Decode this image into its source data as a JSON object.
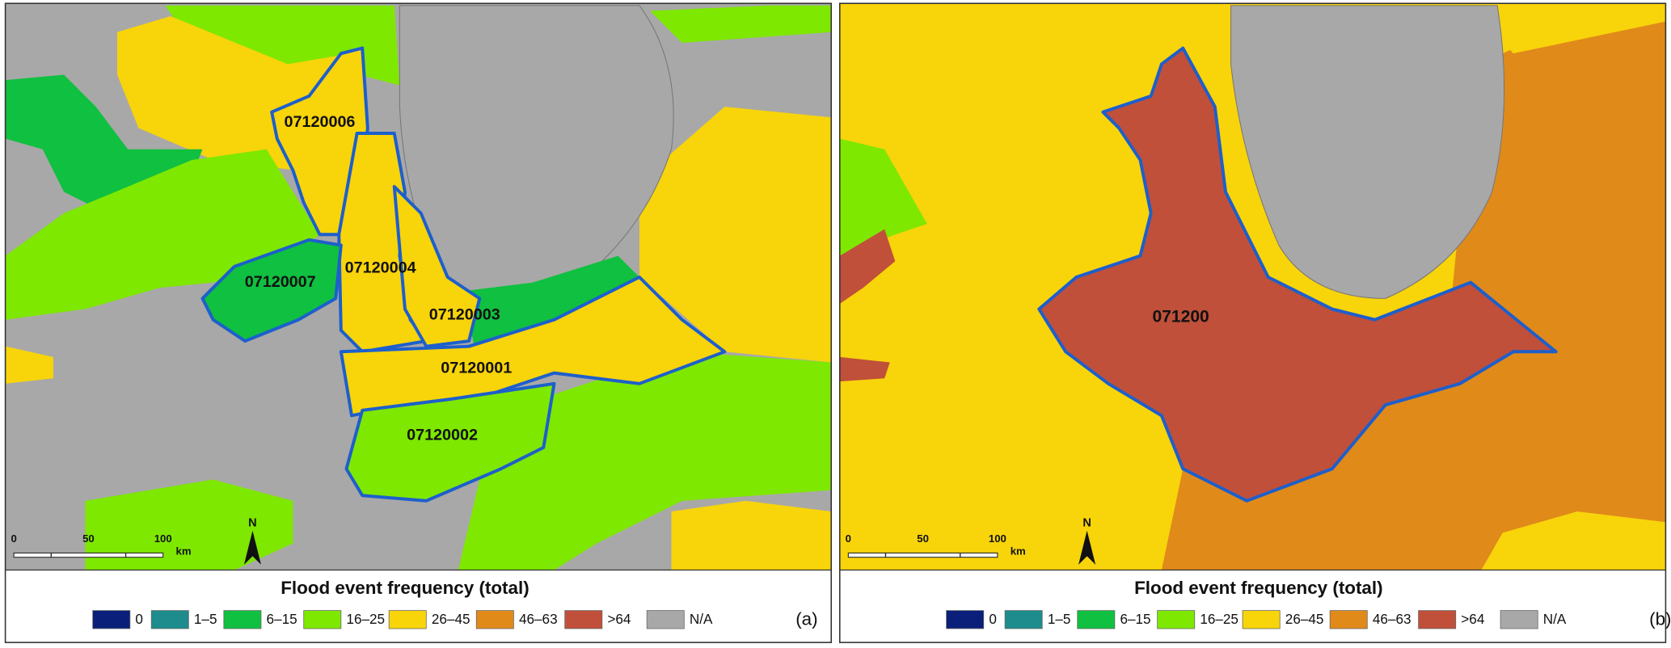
{
  "panels": [
    {
      "tag": "(a)",
      "map_labels": [
        "07120006",
        "07120004",
        "07120007",
        "07120003",
        "07120001",
        "07120002"
      ],
      "scale_bar": {
        "labels": [
          "0",
          "50",
          "100"
        ],
        "unit": "km"
      },
      "north": "N",
      "legend": {
        "title": "Flood event frequency (total)",
        "items": [
          {
            "label": "0",
            "color": "#0a1f7a"
          },
          {
            "label": "1–5",
            "color": "#1e8c8c"
          },
          {
            "label": "6–15",
            "color": "#10c040"
          },
          {
            "label": "16–25",
            "color": "#7ee800"
          },
          {
            "label": "26–45",
            "color": "#f8d40a"
          },
          {
            "label": "46–63",
            "color": "#e08a1a"
          },
          {
            "label": ">64",
            "color": "#c0503a"
          },
          {
            "label": "N/A",
            "color": "#a8a8a8"
          }
        ]
      }
    },
    {
      "tag": "(b)",
      "map_labels": [
        "071200"
      ],
      "scale_bar": {
        "labels": [
          "0",
          "50",
          "100"
        ],
        "unit": "km"
      },
      "north": "N",
      "legend": {
        "title": "Flood event frequency (total)",
        "items": [
          {
            "label": "0",
            "color": "#0a1f7a"
          },
          {
            "label": "1–5",
            "color": "#1e8c8c"
          },
          {
            "label": "6–15",
            "color": "#10c040"
          },
          {
            "label": "16–25",
            "color": "#7ee800"
          },
          {
            "label": "26–45",
            "color": "#f8d40a"
          },
          {
            "label": "46–63",
            "color": "#e08a1a"
          },
          {
            "label": ">64",
            "color": "#c0503a"
          },
          {
            "label": "N/A",
            "color": "#a8a8a8"
          }
        ]
      }
    }
  ]
}
